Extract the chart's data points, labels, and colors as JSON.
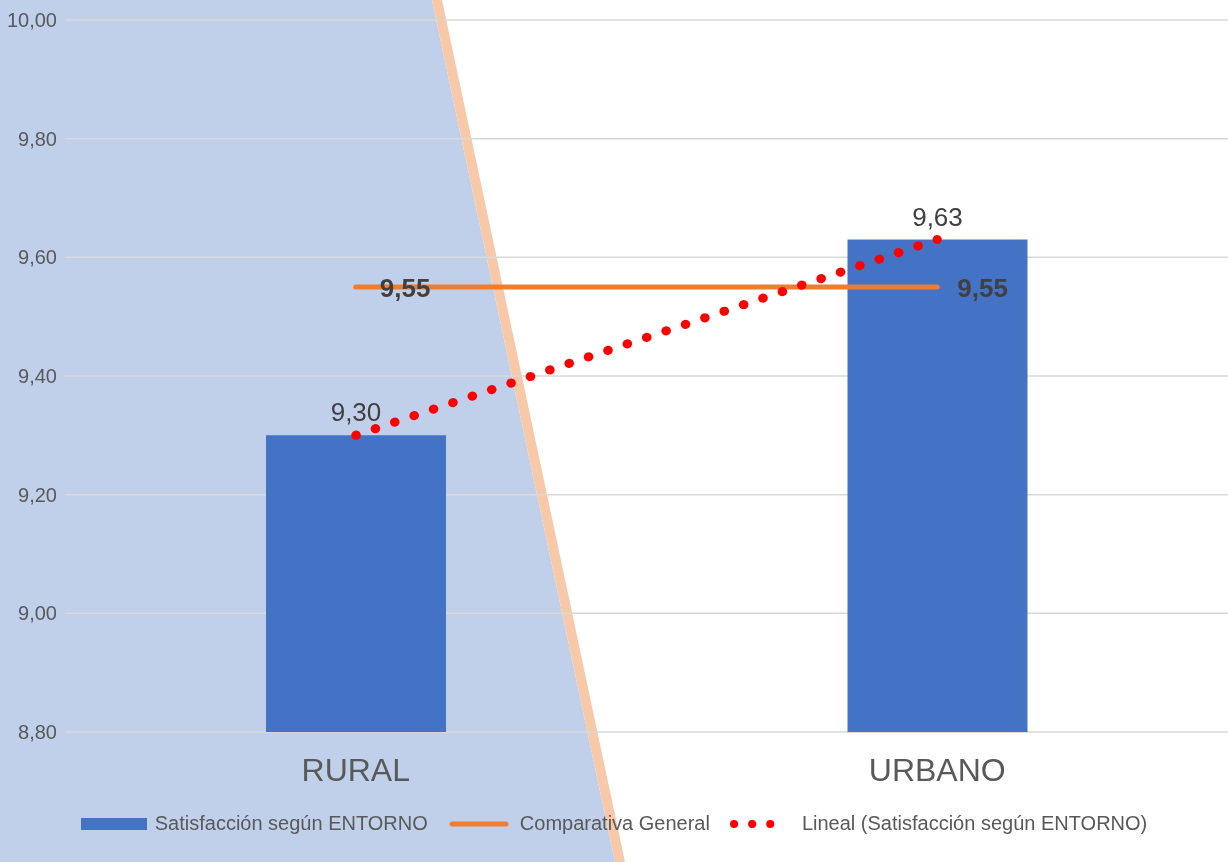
{
  "chart_data": {
    "type": "bar",
    "categories": [
      "RURAL",
      "URBANO"
    ],
    "series": [
      {
        "name": "Satisfacción según ENTORNO",
        "color": "#4472c4",
        "values": [
          9.3,
          9.63
        ],
        "value_labels": [
          "9,30",
          "9,63"
        ]
      },
      {
        "name": "Comparativa General",
        "type": "line",
        "color": "#ed7d31",
        "values": [
          9.55,
          9.55
        ],
        "value_labels": [
          "9,55",
          "9,55"
        ],
        "line_style": "solid"
      },
      {
        "name": "Lineal (Satisfacción según ENTORNO)",
        "type": "line",
        "color": "#ff0000",
        "values": [
          9.3,
          9.63
        ],
        "line_style": "dotted"
      }
    ],
    "ylim": [
      8.8,
      10.0
    ],
    "yticks": [
      {
        "value": 8.8,
        "label": "8,80"
      },
      {
        "value": 9.0,
        "label": "9,00"
      },
      {
        "value": 9.2,
        "label": "9,20"
      },
      {
        "value": 9.4,
        "label": "9,40"
      },
      {
        "value": 9.6,
        "label": "9,60"
      },
      {
        "value": 9.8,
        "label": "9,80"
      },
      {
        "value": 10.0,
        "label": "10,00"
      }
    ],
    "grid": "y",
    "legend": "bottom"
  }
}
